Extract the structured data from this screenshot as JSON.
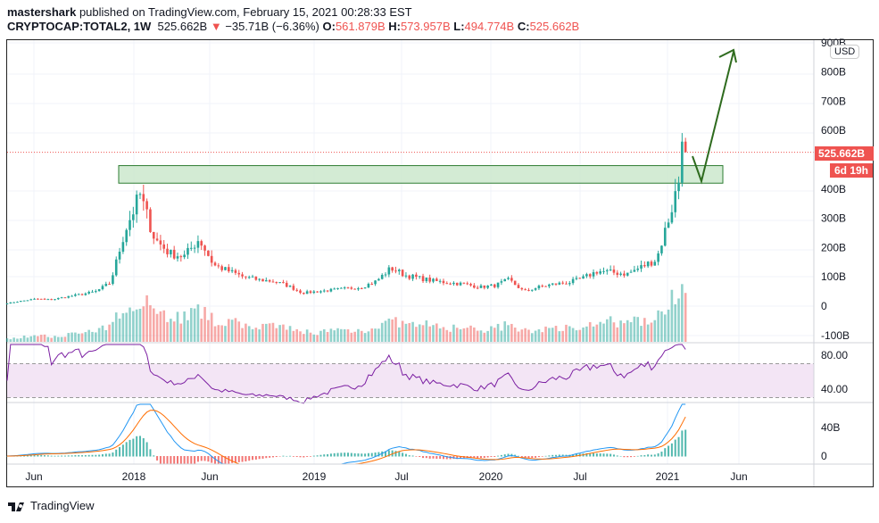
{
  "header": {
    "author": "mastershark",
    "published_text": "published on TradingView.com, February 15, 2021 00:28:33 EST",
    "symbol": "CRYPTOCAP:TOTAL2, 1W",
    "last": "525.662B",
    "change_icon": "triangle-down-icon",
    "change": "−35.71B (−6.36%)",
    "o_label": "O:",
    "o": "561.879B",
    "h_label": "H:",
    "h": "573.957B",
    "l_label": "L:",
    "l": "494.774B",
    "c_label": "C:",
    "c": "525.662B"
  },
  "axis": {
    "currency": "USD",
    "price_ticks": [
      "900B",
      "800B",
      "700B",
      "600B",
      "400B",
      "300B",
      "200B",
      "100B",
      "0",
      "-100B"
    ],
    "rsi_ticks": [
      "80.00",
      "40.00"
    ],
    "macd_ticks": [
      "40B",
      "0"
    ],
    "time_ticks": [
      "Jun",
      "2018",
      "Jun",
      "2019",
      "Jul",
      "2020",
      "Jul",
      "2021",
      "Jun"
    ]
  },
  "price_tag": "525.662B",
  "countdown": "6d 19h",
  "footer": {
    "brand": "TradingView"
  },
  "colors": {
    "up": "#26a69a",
    "down": "#ef5350",
    "zone": "#c8e6c9",
    "arrow": "#2e6b1e",
    "rsi": "#7b1fa2",
    "macd": "#2196f3",
    "signal": "#ff6d00"
  },
  "chart_data": {
    "type": "candlestick",
    "interval": "1W",
    "unit": "USD billions",
    "months": [
      "2017-04",
      "2017-05",
      "2017-06",
      "2017-07",
      "2017-08",
      "2017-09",
      "2017-10",
      "2017-11",
      "2017-12",
      "2018-01",
      "2018-02",
      "2018-03",
      "2018-04",
      "2018-05",
      "2018-06",
      "2018-07",
      "2018-08",
      "2018-09",
      "2018-10",
      "2018-11",
      "2018-12",
      "2019-01",
      "2019-02",
      "2019-03",
      "2019-04",
      "2019-05",
      "2019-06",
      "2019-07",
      "2019-08",
      "2019-09",
      "2019-10",
      "2019-11",
      "2019-12",
      "2020-01",
      "2020-02",
      "2020-03",
      "2020-04",
      "2020-05",
      "2020-06",
      "2020-07",
      "2020-08",
      "2020-09",
      "2020-10",
      "2020-11",
      "2020-12",
      "2021-01",
      "2021-02"
    ],
    "approx_close": [
      10,
      18,
      25,
      22,
      32,
      40,
      50,
      80,
      260,
      380,
      230,
      180,
      170,
      230,
      140,
      120,
      100,
      90,
      85,
      70,
      45,
      50,
      55,
      60,
      65,
      85,
      130,
      105,
      95,
      85,
      80,
      75,
      65,
      70,
      90,
      50,
      65,
      75,
      80,
      95,
      120,
      115,
      110,
      135,
      160,
      330,
      525
    ],
    "ylim": [
      -100,
      900
    ],
    "zone": [
      420,
      480
    ],
    "indicators": [
      "Volume",
      "RSI",
      "MACD"
    ]
  }
}
